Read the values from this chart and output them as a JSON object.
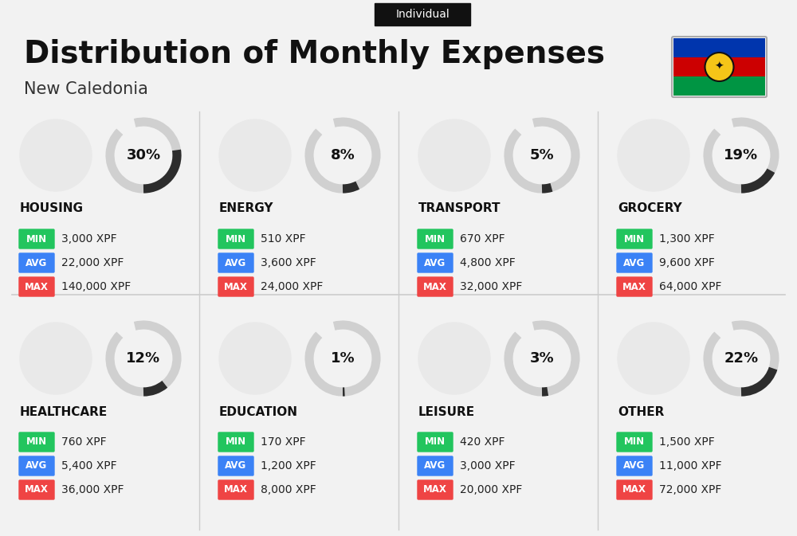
{
  "title": "Distribution of Monthly Expenses",
  "subtitle": "Individual",
  "location": "New Caledonia",
  "bg_color": "#f2f2f2",
  "categories": [
    {
      "name": "HOUSING",
      "pct": 30,
      "min": "3,000 XPF",
      "avg": "22,000 XPF",
      "max": "140,000 XPF",
      "row": 0,
      "col": 0
    },
    {
      "name": "ENERGY",
      "pct": 8,
      "min": "510 XPF",
      "avg": "3,600 XPF",
      "max": "24,000 XPF",
      "row": 0,
      "col": 1
    },
    {
      "name": "TRANSPORT",
      "pct": 5,
      "min": "670 XPF",
      "avg": "4,800 XPF",
      "max": "32,000 XPF",
      "row": 0,
      "col": 2
    },
    {
      "name": "GROCERY",
      "pct": 19,
      "min": "1,300 XPF",
      "avg": "9,600 XPF",
      "max": "64,000 XPF",
      "row": 0,
      "col": 3
    },
    {
      "name": "HEALTHCARE",
      "pct": 12,
      "min": "760 XPF",
      "avg": "5,400 XPF",
      "max": "36,000 XPF",
      "row": 1,
      "col": 0
    },
    {
      "name": "EDUCATION",
      "pct": 1,
      "min": "170 XPF",
      "avg": "1,200 XPF",
      "max": "8,000 XPF",
      "row": 1,
      "col": 1
    },
    {
      "name": "LEISURE",
      "pct": 3,
      "min": "420 XPF",
      "avg": "3,000 XPF",
      "max": "20,000 XPF",
      "row": 1,
      "col": 2
    },
    {
      "name": "OTHER",
      "pct": 22,
      "min": "1,500 XPF",
      "avg": "11,000 XPF",
      "max": "72,000 XPF",
      "row": 1,
      "col": 3
    }
  ],
  "min_color": "#22c55e",
  "avg_color": "#3b82f6",
  "max_color": "#ef4444",
  "arc_fill_color": "#2d2d2d",
  "arc_bg_color": "#d0d0d0",
  "divider_color": "#cccccc",
  "flag_colors": [
    "#0035AD",
    "#CC0001",
    "#009543"
  ],
  "flag_symbol_color": "#000000"
}
